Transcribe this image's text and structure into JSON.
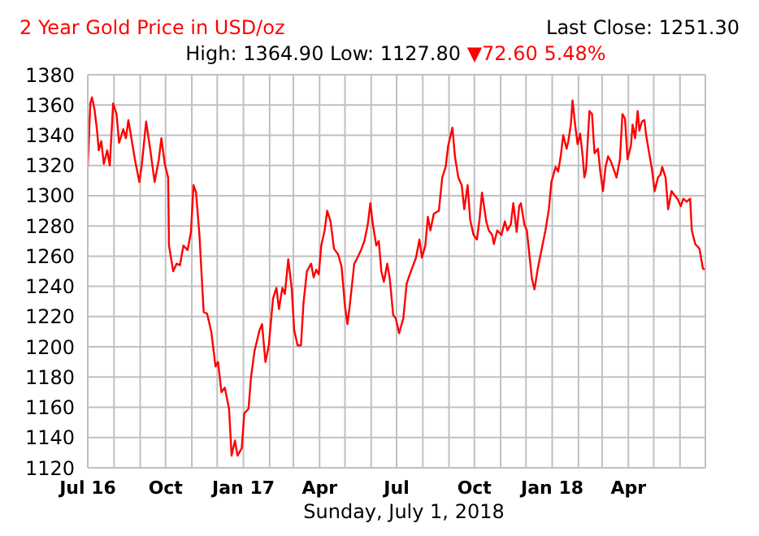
{
  "chart_data": {
    "type": "line",
    "title": "2 Year Gold Price in USD/oz",
    "xlabel": "Sunday, July 1, 2018",
    "annotations": [
      "Last Close: 1251.30",
      "High: 1364.90 Low: 1127.80",
      "▼72.60 5.48%"
    ],
    "xlim": [
      "2016-07-01",
      "2018-07-01"
    ],
    "xticks": [
      {
        "value": "2016-07-01",
        "label": "Jul 16"
      },
      {
        "value": "2016-08-01",
        "label": null
      },
      {
        "value": "2016-09-01",
        "label": null
      },
      {
        "value": "2016-10-01",
        "label": "Oct"
      },
      {
        "value": "2016-11-01",
        "label": null
      },
      {
        "value": "2016-12-01",
        "label": null
      },
      {
        "value": "2017-01-01",
        "label": "Jan 17"
      },
      {
        "value": "2017-02-01",
        "label": null
      },
      {
        "value": "2017-03-01",
        "label": null
      },
      {
        "value": "2017-04-01",
        "label": "Apr"
      },
      {
        "value": "2017-05-01",
        "label": null
      },
      {
        "value": "2017-06-01",
        "label": null
      },
      {
        "value": "2017-07-01",
        "label": "Jul"
      },
      {
        "value": "2017-08-01",
        "label": null
      },
      {
        "value": "2017-09-01",
        "label": null
      },
      {
        "value": "2017-10-01",
        "label": "Oct"
      },
      {
        "value": "2017-11-01",
        "label": null
      },
      {
        "value": "2017-12-01",
        "label": null
      },
      {
        "value": "2018-01-01",
        "label": "Jan 18"
      },
      {
        "value": "2018-02-01",
        "label": null
      },
      {
        "value": "2018-03-01",
        "label": null
      },
      {
        "value": "2018-04-01",
        "label": "Apr"
      },
      {
        "value": "2018-05-01",
        "label": null
      },
      {
        "value": "2018-06-01",
        "label": null
      },
      {
        "value": "2018-07-01",
        "label": null
      }
    ],
    "ylim": [
      1120,
      1380
    ],
    "yticks": [
      1120,
      1140,
      1160,
      1180,
      1200,
      1220,
      1240,
      1260,
      1280,
      1300,
      1320,
      1340,
      1360,
      1380
    ],
    "grid": true,
    "legend": false,
    "marker": "none",
    "line_style": "solid",
    "x": [
      "2016-07-01",
      "2016-07-04",
      "2016-07-06",
      "2016-07-09",
      "2016-07-12",
      "2016-07-14",
      "2016-07-17",
      "2016-07-20",
      "2016-07-24",
      "2016-07-27",
      "2016-07-31",
      "2016-08-04",
      "2016-08-07",
      "2016-08-12",
      "2016-08-15",
      "2016-08-18",
      "2016-08-21",
      "2016-08-26",
      "2016-08-31",
      "2016-09-03",
      "2016-09-08",
      "2016-09-13",
      "2016-09-18",
      "2016-09-23",
      "2016-09-26",
      "2016-09-30",
      "2016-10-04",
      "2016-10-05",
      "2016-10-10",
      "2016-10-14",
      "2016-10-18",
      "2016-10-22",
      "2016-10-27",
      "2016-10-31",
      "2016-11-03",
      "2016-11-06",
      "2016-11-10",
      "2016-11-15",
      "2016-11-19",
      "2016-11-24",
      "2016-11-29",
      "2016-12-02",
      "2016-12-06",
      "2016-12-10",
      "2016-12-15",
      "2016-12-18",
      "2016-12-22",
      "2016-12-25",
      "2016-12-30",
      "2017-01-02",
      "2017-01-07",
      "2017-01-10",
      "2017-01-14",
      "2017-01-20",
      "2017-01-23",
      "2017-01-27",
      "2017-01-31",
      "2017-02-05",
      "2017-02-09",
      "2017-02-12",
      "2017-02-16",
      "2017-02-19",
      "2017-02-23",
      "2017-02-27",
      "2017-03-02",
      "2017-03-06",
      "2017-03-10",
      "2017-03-13",
      "2017-03-17",
      "2017-03-22",
      "2017-03-25",
      "2017-03-28",
      "2017-03-31",
      "2017-04-03",
      "2017-04-07",
      "2017-04-10",
      "2017-04-14",
      "2017-04-18",
      "2017-04-23",
      "2017-04-27",
      "2017-05-01",
      "2017-05-04",
      "2017-05-07",
      "2017-05-12",
      "2017-05-15",
      "2017-05-20",
      "2017-05-24",
      "2017-05-28",
      "2017-05-31",
      "2017-06-03",
      "2017-06-07",
      "2017-06-10",
      "2017-06-13",
      "2017-06-16",
      "2017-06-20",
      "2017-06-23",
      "2017-06-27",
      "2017-06-30",
      "2017-07-04",
      "2017-07-09",
      "2017-07-13",
      "2017-07-18",
      "2017-07-24",
      "2017-07-28",
      "2017-07-31",
      "2017-08-04",
      "2017-08-07",
      "2017-08-10",
      "2017-08-14",
      "2017-08-20",
      "2017-08-24",
      "2017-08-28",
      "2017-08-31",
      "2017-09-05",
      "2017-09-08",
      "2017-09-12",
      "2017-09-16",
      "2017-09-19",
      "2017-09-23",
      "2017-09-26",
      "2017-09-30",
      "2017-10-04",
      "2017-10-07",
      "2017-10-10",
      "2017-10-15",
      "2017-10-18",
      "2017-10-22",
      "2017-10-24",
      "2017-10-28",
      "2017-11-02",
      "2017-11-06",
      "2017-11-09",
      "2017-11-13",
      "2017-11-16",
      "2017-11-20",
      "2017-11-23",
      "2017-11-25",
      "2017-11-29",
      "2017-12-02",
      "2017-12-05",
      "2017-12-08",
      "2017-12-11",
      "2017-12-15",
      "2017-12-20",
      "2017-12-24",
      "2017-12-28",
      "2017-12-31",
      "2018-01-05",
      "2018-01-08",
      "2018-01-11",
      "2018-01-14",
      "2018-01-18",
      "2018-01-20",
      "2018-01-23",
      "2018-01-25",
      "2018-01-28",
      "2018-01-31",
      "2018-02-03",
      "2018-02-06",
      "2018-02-08",
      "2018-02-10",
      "2018-02-14",
      "2018-02-17",
      "2018-02-20",
      "2018-02-24",
      "2018-02-27",
      "2018-03-02",
      "2018-03-05",
      "2018-03-08",
      "2018-03-11",
      "2018-03-15",
      "2018-03-18",
      "2018-03-22",
      "2018-03-25",
      "2018-03-28",
      "2018-03-31",
      "2018-04-04",
      "2018-04-06",
      "2018-04-09",
      "2018-04-12",
      "2018-04-14",
      "2018-04-17",
      "2018-04-20",
      "2018-04-22",
      "2018-04-25",
      "2018-04-29",
      "2018-05-02",
      "2018-05-06",
      "2018-05-09",
      "2018-05-11",
      "2018-05-15",
      "2018-05-18",
      "2018-05-22",
      "2018-05-26",
      "2018-05-29",
      "2018-06-02",
      "2018-06-05",
      "2018-06-09",
      "2018-06-13",
      "2018-06-15",
      "2018-06-19",
      "2018-06-24",
      "2018-06-28",
      "2018-06-30"
    ],
    "series": [
      {
        "color": "#ff0000",
        "values": [
          1319,
          1361,
          1365,
          1357,
          1343,
          1330,
          1336,
          1321,
          1330,
          1320,
          1361,
          1354,
          1335,
          1344,
          1338,
          1350,
          1340,
          1323,
          1309,
          1321,
          1349,
          1330,
          1309,
          1324,
          1338,
          1321,
          1312,
          1267,
          1250,
          1255,
          1254,
          1267,
          1264,
          1276,
          1307,
          1302,
          1274,
          1223,
          1222,
          1210,
          1187,
          1190,
          1170,
          1173,
          1159,
          1128,
          1138,
          1128,
          1133,
          1156,
          1159,
          1180,
          1197,
          1211,
          1215,
          1190,
          1201,
          1232,
          1239,
          1225,
          1239,
          1235,
          1258,
          1239,
          1211,
          1201,
          1201,
          1229,
          1250,
          1255,
          1246,
          1251,
          1248,
          1267,
          1277,
          1290,
          1283,
          1265,
          1261,
          1253,
          1227,
          1215,
          1229,
          1255,
          1258,
          1264,
          1270,
          1281,
          1295,
          1281,
          1267,
          1270,
          1250,
          1243,
          1255,
          1245,
          1221,
          1219,
          1209,
          1219,
          1242,
          1250,
          1259,
          1271,
          1259,
          1267,
          1286,
          1277,
          1288,
          1290,
          1312,
          1319,
          1333,
          1345,
          1326,
          1312,
          1307,
          1291,
          1307,
          1284,
          1274,
          1271,
          1284,
          1302,
          1283,
          1277,
          1274,
          1268,
          1277,
          1274,
          1283,
          1277,
          1281,
          1295,
          1276,
          1293,
          1295,
          1281,
          1277,
          1261,
          1245,
          1238,
          1252,
          1266,
          1277,
          1291,
          1309,
          1319,
          1316,
          1326,
          1340,
          1331,
          1336,
          1347,
          1363,
          1347,
          1334,
          1341,
          1326,
          1312,
          1317,
          1356,
          1354,
          1328,
          1331,
          1315,
          1303,
          1319,
          1326,
          1323,
          1317,
          1312,
          1324,
          1354,
          1351,
          1324,
          1333,
          1347,
          1338,
          1356,
          1343,
          1349,
          1350,
          1340,
          1330,
          1317,
          1303,
          1312,
          1314,
          1319,
          1312,
          1291,
          1303,
          1300,
          1298,
          1293,
          1298,
          1296,
          1298,
          1277,
          1268,
          1265,
          1252,
          1251
        ]
      }
    ]
  }
}
